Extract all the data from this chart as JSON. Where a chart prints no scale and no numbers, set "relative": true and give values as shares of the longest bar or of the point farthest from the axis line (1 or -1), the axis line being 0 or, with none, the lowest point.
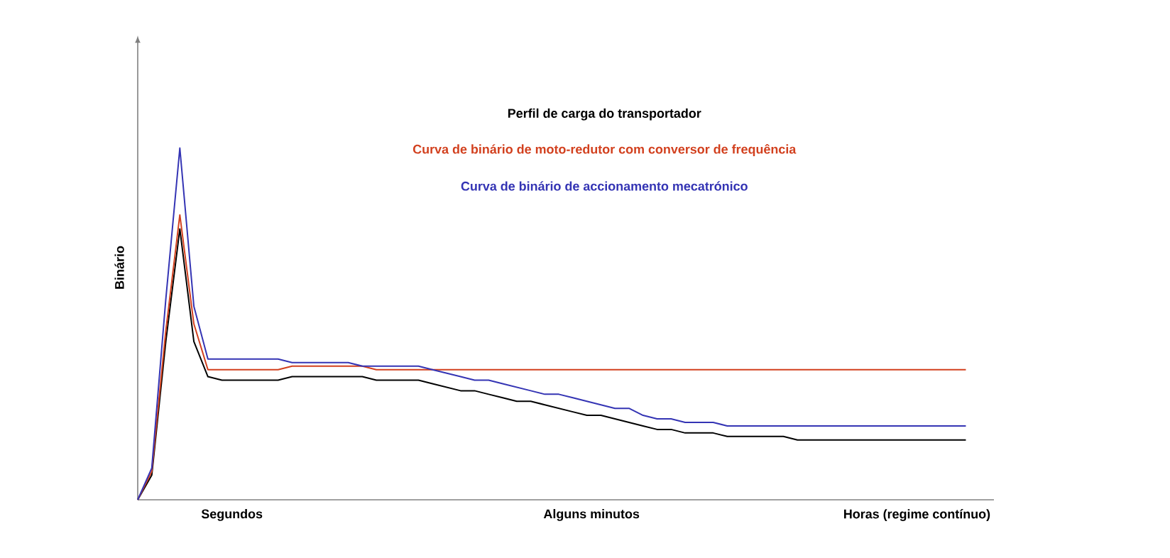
{
  "chart_data": {
    "type": "line",
    "relative": true,
    "ylabel": "Binário",
    "categories": [
      null,
      null,
      null,
      null,
      null,
      null,
      null,
      null,
      null,
      null,
      null,
      null,
      null,
      null,
      null,
      null,
      null,
      null,
      null,
      null,
      null,
      null,
      null,
      null,
      null,
      null,
      null,
      null,
      null,
      null,
      null,
      null,
      null,
      null,
      null,
      null,
      null,
      null,
      null,
      null,
      null,
      null,
      null,
      null,
      null,
      null,
      null,
      null,
      null,
      null,
      null,
      null,
      null,
      null,
      null,
      null,
      null,
      null,
      null,
      null
    ],
    "series": [
      {
        "name": "Perfil de carga do transportador",
        "color": "#000000",
        "values": [
          0,
          0.07,
          0.45,
          0.77,
          0.45,
          0.35,
          0.34,
          0.34,
          0.34,
          0.34,
          0.34,
          0.35,
          0.35,
          0.35,
          0.35,
          0.35,
          0.35,
          0.34,
          0.34,
          0.34,
          0.34,
          0.33,
          0.32,
          0.31,
          0.31,
          0.3,
          0.29,
          0.28,
          0.28,
          0.27,
          0.26,
          0.25,
          0.24,
          0.24,
          0.23,
          0.22,
          0.21,
          0.2,
          0.2,
          0.19,
          0.19,
          0.19,
          0.18,
          0.18,
          0.18,
          0.18,
          0.18,
          0.17,
          0.17,
          0.17,
          0.17,
          0.17,
          0.17,
          0.17,
          0.17,
          0.17,
          0.17,
          0.17,
          0.17,
          0.17
        ]
      },
      {
        "name": "Curva de binário de moto-redutor com conversor de frequência",
        "color": "#d2401e",
        "values": [
          0,
          0.08,
          0.48,
          0.81,
          0.5,
          0.37,
          0.37,
          0.37,
          0.37,
          0.37,
          0.37,
          0.38,
          0.38,
          0.38,
          0.38,
          0.38,
          0.38,
          0.37,
          0.37,
          0.37,
          0.37,
          0.37,
          0.37,
          0.37,
          0.37,
          0.37,
          0.37,
          0.37,
          0.37,
          0.37,
          0.37,
          0.37,
          0.37,
          0.37,
          0.37,
          0.37,
          0.37,
          0.37,
          0.37,
          0.37,
          0.37,
          0.37,
          0.37,
          0.37,
          0.37,
          0.37,
          0.37,
          0.37,
          0.37,
          0.37,
          0.37,
          0.37,
          0.37,
          0.37,
          0.37,
          0.37,
          0.37,
          0.37,
          0.37,
          0.37
        ]
      },
      {
        "name": "Curva de binário de accionamento mecatrónico",
        "color": "#3434b4",
        "values": [
          0,
          0.09,
          0.57,
          1.0,
          0.55,
          0.4,
          0.4,
          0.4,
          0.4,
          0.4,
          0.4,
          0.39,
          0.39,
          0.39,
          0.39,
          0.39,
          0.38,
          0.38,
          0.38,
          0.38,
          0.38,
          0.37,
          0.36,
          0.35,
          0.34,
          0.34,
          0.33,
          0.32,
          0.31,
          0.3,
          0.3,
          0.29,
          0.28,
          0.27,
          0.26,
          0.26,
          0.24,
          0.23,
          0.23,
          0.22,
          0.22,
          0.22,
          0.21,
          0.21,
          0.21,
          0.21,
          0.21,
          0.21,
          0.21,
          0.21,
          0.21,
          0.21,
          0.21,
          0.21,
          0.21,
          0.21,
          0.21,
          0.21,
          0.21,
          0.21
        ]
      }
    ],
    "annotations": [
      "Segundos",
      "Alguns minutos",
      "Horas (regime contínuo)"
    ]
  }
}
